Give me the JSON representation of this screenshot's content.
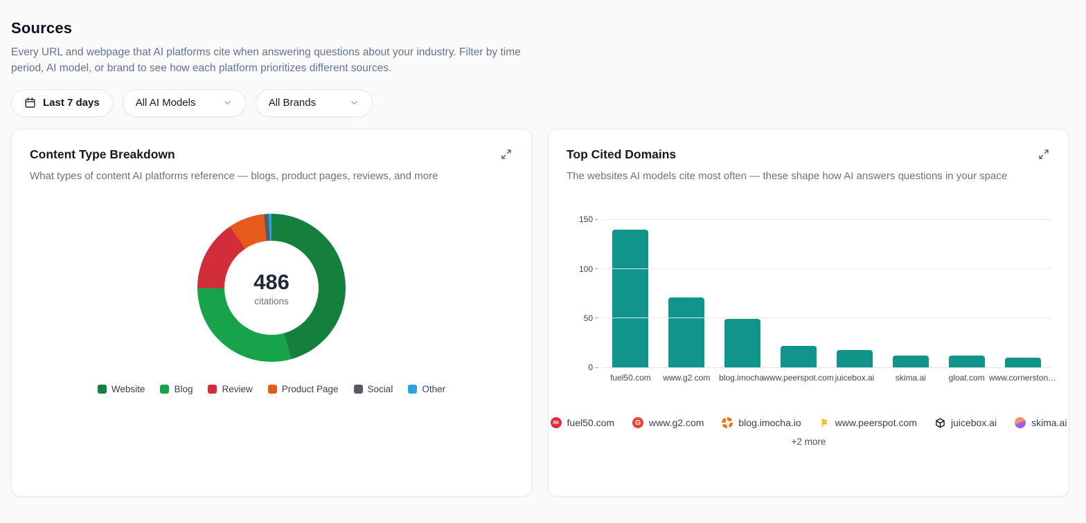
{
  "page": {
    "title": "Sources",
    "description": "Every URL and webpage that AI platforms cite when answering questions about your industry. Filter by time period, AI model, or brand to see how each platform prioritizes different sources."
  },
  "filters": {
    "date_range": "Last 7 days",
    "ai_model": "All AI Models",
    "brand": "All Brands"
  },
  "cards": {
    "content_type": {
      "title": "Content Type Breakdown",
      "subtitle": "What types of content AI platforms reference — blogs, product pages, reviews, and more",
      "center_value": "486",
      "center_label": "citations"
    },
    "top_domains": {
      "title": "Top Cited Domains",
      "subtitle": "The websites AI models cite most often — these shape how AI answers questions in your space",
      "more_label": "+2 more"
    }
  },
  "chart_data": [
    {
      "type": "pie",
      "title": "Content Type Breakdown",
      "donut": true,
      "total": 486,
      "center_label": "citations",
      "legend_position": "bottom",
      "segments": [
        {
          "label": "Website",
          "value": 222,
          "color": "#15803d"
        },
        {
          "label": "Blog",
          "value": 142,
          "color": "#16a34a"
        },
        {
          "label": "Review",
          "value": 76,
          "color": "#d32d3a"
        },
        {
          "label": "Product Page",
          "value": 38,
          "color": "#e85a1c"
        },
        {
          "label": "Social",
          "value": 5,
          "color": "#555b64"
        },
        {
          "label": "Other",
          "value": 3,
          "color": "#2e9fdf"
        }
      ]
    },
    {
      "type": "bar",
      "title": "Top Cited Domains",
      "categories": [
        "fuel50.com",
        "www.g2.com",
        "blog.imocha.",
        "www.peerspot.com",
        "juicebox.ai",
        "skima.ai",
        "gloat.com",
        "www.cornerston…"
      ],
      "values": [
        140,
        71,
        49,
        22,
        18,
        12,
        12,
        10
      ],
      "bar_color": "#11948a",
      "ylim": [
        0,
        150
      ],
      "yticks": [
        0,
        50,
        100,
        150
      ],
      "grid": true,
      "xlabel": "",
      "ylabel": ""
    }
  ],
  "domain_chips": [
    {
      "label": "fuel50.com",
      "icon": "fuel50-favicon"
    },
    {
      "label": "www.g2.com",
      "icon": "g2-favicon"
    },
    {
      "label": "blog.imocha.io",
      "icon": "imocha-favicon"
    },
    {
      "label": "www.peerspot.com",
      "icon": "peerspot-favicon"
    },
    {
      "label": "juicebox.ai",
      "icon": "juicebox-favicon"
    },
    {
      "label": "skima.ai",
      "icon": "skima-favicon"
    }
  ]
}
